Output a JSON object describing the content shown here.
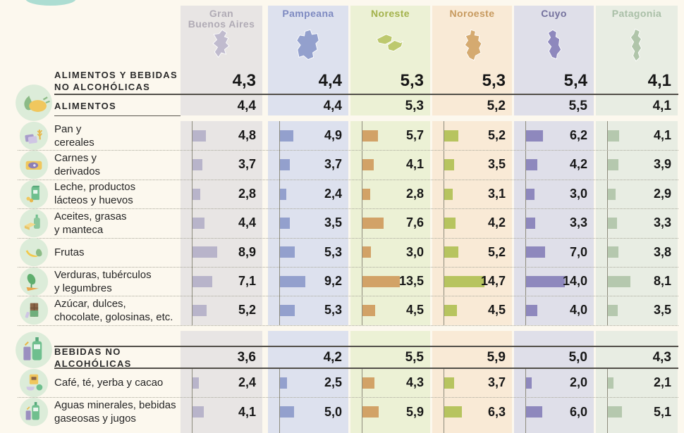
{
  "title": "Variación regional de precios de alimentos y bebidas",
  "regions": [
    {
      "slug": "gran-buenos-aires",
      "name": "Gran Buenos Aires",
      "name_lines": [
        "Gran",
        "Buenos Aires"
      ],
      "text_color": "#b0abb5",
      "tint": "#e8e5e4",
      "bar_color": "#b8b4ca",
      "map_color": "#c0bbce",
      "map_icon": "map-gran-buenos-aires-icon"
    },
    {
      "slug": "pampeana",
      "name": "Pampeana",
      "name_lines": [
        "Pampeana"
      ],
      "text_color": "#7e8ac1",
      "tint": "#dde1ee",
      "bar_color": "#93a0cd",
      "map_color": "#93a0cd",
      "map_icon": "map-pampeana-icon"
    },
    {
      "slug": "noreste",
      "name": "Noreste",
      "name_lines": [
        "Noreste"
      ],
      "text_color": "#a3b24c",
      "tint": "#ecf1d5",
      "bar_color": "#d2a267",
      "map_color": "#bdc96e",
      "map_icon": "map-noreste-icon"
    },
    {
      "slug": "noroeste",
      "name": "Noroeste",
      "name_lines": [
        "Noroeste"
      ],
      "text_color": "#c79a5f",
      "tint": "#f9ead6",
      "bar_color": "#b7c45f",
      "map_color": "#d5aa70",
      "map_icon": "map-noroeste-icon"
    },
    {
      "slug": "cuyo",
      "name": "Cuyo",
      "name_lines": [
        "Cuyo"
      ],
      "text_color": "#74719d",
      "tint": "#dfdfe9",
      "bar_color": "#8e88bd",
      "map_color": "#8e88bd",
      "map_icon": "map-cuyo-icon"
    },
    {
      "slug": "patagonia",
      "name": "Patagonia",
      "name_lines": [
        "Patagonia"
      ],
      "text_color": "#a9bfa7",
      "tint": "#e8ede3",
      "bar_color": "#b5c8ae",
      "map_color": "#b0c5aa",
      "map_icon": "map-patagonia-icon"
    }
  ],
  "rows": [
    {
      "kind": "summary_main",
      "lines": [
        "ALIMENTOS Y BEBIDAS",
        "NO ALCOHÓLICAS"
      ],
      "values": [
        "4,3",
        "4,4",
        "5,3",
        "5,3",
        "5,4",
        "4,1"
      ]
    },
    {
      "kind": "summary",
      "lines": [
        "ALIMENTOS"
      ],
      "icon": "food-section-icon",
      "values": [
        "4,4",
        "4,4",
        "5,3",
        "5,2",
        "5,5",
        "4,1"
      ]
    },
    {
      "kind": "item",
      "lines": [
        "Pan y",
        "cereales"
      ],
      "icon": "bread-cereal-icon",
      "values": [
        "4,8",
        "4,9",
        "5,7",
        "5,2",
        "6,2",
        "4,1"
      ]
    },
    {
      "kind": "item",
      "lines": [
        "Carnes y",
        "derivados"
      ],
      "icon": "meat-icon",
      "values": [
        "3,7",
        "3,7",
        "4,1",
        "3,5",
        "4,2",
        "3,9"
      ]
    },
    {
      "kind": "item",
      "lines": [
        "Leche, productos",
        "lácteos y huevos"
      ],
      "icon": "dairy-eggs-icon",
      "values": [
        "2,8",
        "2,4",
        "2,8",
        "3,1",
        "3,0",
        "2,9"
      ]
    },
    {
      "kind": "item",
      "lines": [
        "Aceites, grasas",
        "y manteca"
      ],
      "icon": "oils-fats-icon",
      "values": [
        "4,4",
        "3,5",
        "7,6",
        "4,2",
        "3,3",
        "3,3"
      ]
    },
    {
      "kind": "item",
      "lines": [
        "Frutas"
      ],
      "icon": "fruit-icon",
      "values": [
        "8,9",
        "5,3",
        "3,0",
        "5,2",
        "7,0",
        "3,8"
      ]
    },
    {
      "kind": "item",
      "lines": [
        "Verduras, tubérculos",
        "y legumbres"
      ],
      "icon": "vegetables-icon",
      "values": [
        "7,1",
        "9,2",
        "13,5",
        "14,7",
        "14,0",
        "8,1"
      ]
    },
    {
      "kind": "item",
      "lines": [
        "Azúcar, dulces,",
        "chocolate, golosinas, etc."
      ],
      "icon": "sugar-sweets-icon",
      "values": [
        "5,2",
        "5,3",
        "4,5",
        "4,5",
        "4,0",
        "3,5"
      ]
    },
    {
      "kind": "summary",
      "lines": [
        "BEBIDAS NO ALCOHÓLICAS"
      ],
      "icon": "beverages-section-icon",
      "values": [
        "3,6",
        "4,2",
        "5,5",
        "5,9",
        "5,0",
        "4,3"
      ]
    },
    {
      "kind": "item",
      "lines": [
        "Café, té, yerba y cacao"
      ],
      "icon": "coffee-tea-icon",
      "values": [
        "2,4",
        "2,5",
        "4,3",
        "3,7",
        "2,0",
        "2,1"
      ]
    },
    {
      "kind": "item",
      "lines": [
        "Aguas minerales, bebidas",
        "gaseosas y jugos"
      ],
      "icon": "water-soda-juice-icon",
      "values": [
        "4,1",
        "5,0",
        "5,9",
        "6,3",
        "6,0",
        "5,1"
      ]
    }
  ],
  "chart_data": {
    "type": "bar",
    "title": "Alimentos y bebidas no alcohólicas — variación por región",
    "orientation": "horizontal",
    "categories": [
      "Pan y cereales",
      "Carnes y derivados",
      "Leche, productos lácteos y huevos",
      "Aceites, grasas y manteca",
      "Frutas",
      "Verduras, tubérculos y legumbres",
      "Azúcar, dulces, chocolate, golosinas, etc.",
      "Café, té, yerba y cacao",
      "Aguas minerales, bebidas gaseosas y jugos"
    ],
    "series": [
      {
        "name": "Gran Buenos Aires",
        "values": [
          4.8,
          3.7,
          2.8,
          4.4,
          8.9,
          7.1,
          5.2,
          2.4,
          4.1
        ]
      },
      {
        "name": "Pampeana",
        "values": [
          4.9,
          3.7,
          2.4,
          3.5,
          5.3,
          9.2,
          5.3,
          2.5,
          5.0
        ]
      },
      {
        "name": "Noreste",
        "values": [
          5.7,
          4.1,
          2.8,
          7.6,
          3.0,
          13.5,
          4.5,
          4.3,
          5.9
        ]
      },
      {
        "name": "Noroeste",
        "values": [
          5.2,
          3.5,
          3.1,
          4.2,
          5.2,
          14.7,
          4.5,
          3.7,
          6.3
        ]
      },
      {
        "name": "Cuyo",
        "values": [
          6.2,
          4.2,
          3.0,
          3.3,
          7.0,
          14.0,
          4.0,
          2.0,
          6.0
        ]
      },
      {
        "name": "Patagonia",
        "values": [
          4.1,
          3.9,
          2.9,
          3.3,
          3.8,
          8.1,
          3.5,
          2.1,
          5.1
        ]
      }
    ],
    "summary_rows": [
      {
        "label": "ALIMENTOS Y BEBIDAS NO ALCOHÓLICAS",
        "values": [
          4.3,
          4.4,
          5.3,
          5.3,
          5.4,
          4.1
        ]
      },
      {
        "label": "ALIMENTOS",
        "values": [
          4.4,
          4.4,
          5.3,
          5.2,
          5.5,
          4.1
        ]
      },
      {
        "label": "BEBIDAS NO ALCOHÓLICAS",
        "values": [
          3.6,
          4.2,
          5.5,
          5.9,
          5.0,
          4.3
        ]
      }
    ],
    "xlim": [
      0,
      15
    ],
    "value_format": "comma-decimal",
    "legend_position": "column-headers",
    "grid": false
  }
}
